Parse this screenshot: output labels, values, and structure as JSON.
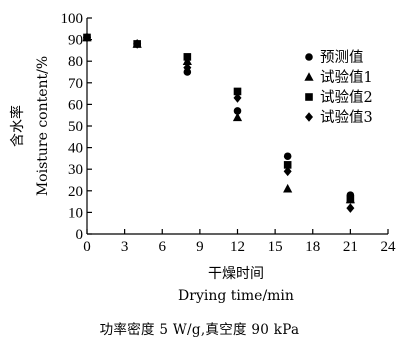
{
  "chart_data": {
    "type": "scatter",
    "xlabel_cn": "干燥时间",
    "xlabel_en": "Drying time/min",
    "ylabel_cn": "含水率",
    "ylabel_en": "Moisture content/%",
    "xlim": [
      0,
      24
    ],
    "ylim": [
      0,
      100
    ],
    "xticks": [
      0,
      3,
      6,
      9,
      12,
      15,
      18,
      21,
      24
    ],
    "yticks": [
      0,
      10,
      20,
      30,
      40,
      50,
      60,
      70,
      80,
      90,
      100
    ],
    "grid": false,
    "legend_position": "right",
    "series": [
      {
        "name": "预测值",
        "marker": "circle",
        "x": [
          0,
          4,
          8,
          12,
          16,
          21
        ],
        "y": [
          91,
          88,
          75,
          57,
          36,
          18
        ]
      },
      {
        "name": "试验值1",
        "marker": "triangle",
        "x": [
          0,
          4,
          8,
          12,
          16,
          21
        ],
        "y": [
          91,
          88,
          80,
          54,
          21,
          16
        ]
      },
      {
        "name": "试验值2",
        "marker": "square",
        "x": [
          0,
          4,
          8,
          12,
          16,
          21
        ],
        "y": [
          91,
          88,
          82,
          66,
          32,
          16
        ]
      },
      {
        "name": "试验值3",
        "marker": "diamond",
        "x": [
          0,
          4,
          8,
          12,
          16,
          21
        ],
        "y": [
          91,
          88,
          77,
          63,
          29,
          12
        ]
      }
    ]
  },
  "caption": "功率密度 5 W/g,真空度 90 kPa"
}
